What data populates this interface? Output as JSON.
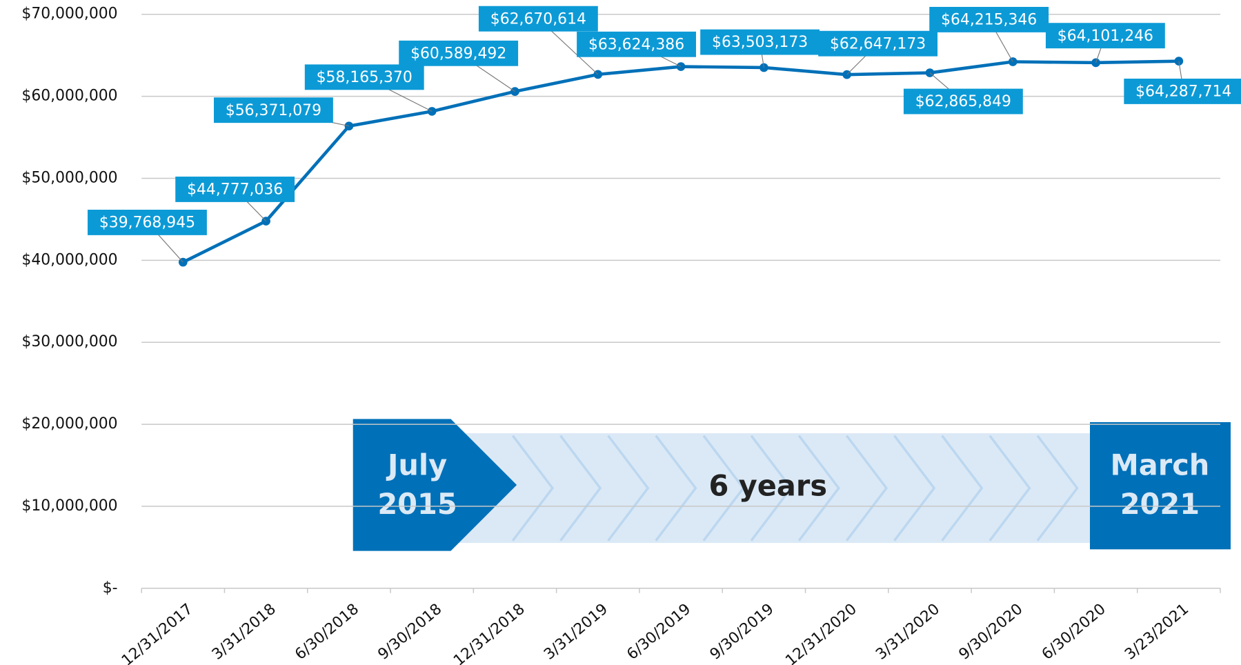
{
  "chart_data": {
    "type": "line",
    "categories": [
      "12/31/2017",
      "3/31/2018",
      "6/30/2018",
      "9/30/2018",
      "12/31/2018",
      "3/31/2019",
      "6/30/2019",
      "9/30/2019",
      "12/31/2020",
      "3/31/2020",
      "9/30/2020",
      "6/30/2020",
      "3/23/2021"
    ],
    "series": [
      {
        "color": "#0070b8",
        "values": [
          39768945,
          44777036,
          56371079,
          58165370,
          60589492,
          62670614,
          63624386,
          63503173,
          62647173,
          62865849,
          64215346,
          64101246,
          64287714
        ],
        "value_labels": [
          "$39,768,945",
          "$44,777,036",
          "$56,371,079",
          "$58,165,370",
          "$60,589,492",
          "$62,670,614",
          "$63,624,386",
          "$63,503,173",
          "$62,647,173",
          "$62,865,849",
          "$64,215,346",
          "$64,101,246",
          "$64,287,714"
        ]
      }
    ],
    "label_color": "#0c9ad6",
    "ylim": [
      0,
      70000000
    ],
    "yticks": [
      {
        "value": 0,
        "label": "$-"
      },
      {
        "value": 10000000,
        "label": "$10,000,000"
      },
      {
        "value": 20000000,
        "label": "$20,000,000"
      },
      {
        "value": 30000000,
        "label": "$30,000,000"
      },
      {
        "value": 40000000,
        "label": "$40,000,000"
      },
      {
        "value": 50000000,
        "label": "$50,000,000"
      },
      {
        "value": 60000000,
        "label": "$60,000,000"
      },
      {
        "value": 70000000,
        "label": "$70,000,000"
      }
    ],
    "grid": true,
    "annotations": [
      "July",
      "2015",
      "6 years",
      "March",
      "2021"
    ]
  }
}
